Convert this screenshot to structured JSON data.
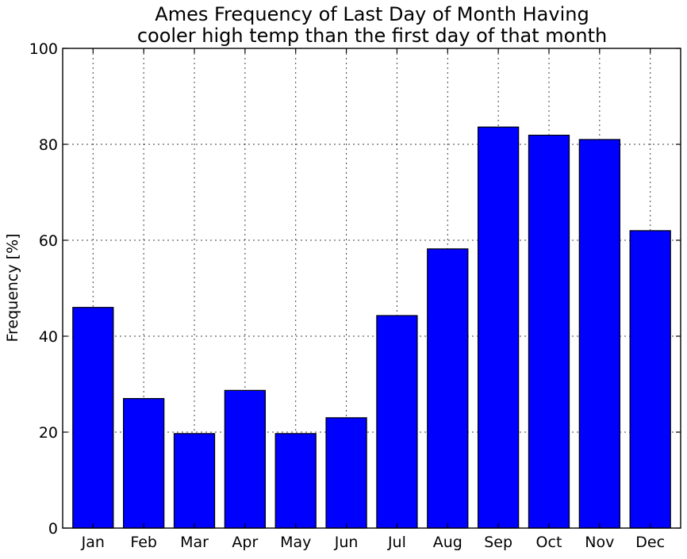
{
  "chart_data": {
    "type": "bar",
    "title": [
      "Ames Frequency of Last Day of Month Having",
      "cooler high temp than the first day of that month"
    ],
    "xlabel": "",
    "ylabel": "Frequency [%]",
    "categories": [
      "Jan",
      "Feb",
      "Mar",
      "Apr",
      "May",
      "Jun",
      "Jul",
      "Aug",
      "Sep",
      "Oct",
      "Nov",
      "Dec"
    ],
    "values": [
      46.0,
      27.0,
      19.7,
      28.7,
      19.7,
      23.0,
      44.3,
      58.2,
      83.6,
      81.9,
      81.0,
      62.0
    ],
    "ylim": [
      0,
      100
    ],
    "yticks": [
      0,
      20,
      40,
      60,
      80,
      100
    ],
    "grid": true,
    "bar_color": "#0000ff",
    "legend": "none"
  }
}
